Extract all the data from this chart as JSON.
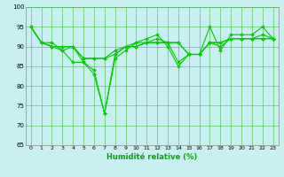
{
  "xlabel": "Humidité relative (%)",
  "bg_color": "#c8f0f0",
  "line_color": "#00cc00",
  "grid_color": "#44bb44",
  "ylim": [
    65,
    100
  ],
  "xlim": [
    -0.5,
    23.5
  ],
  "yticks": [
    65,
    70,
    75,
    80,
    85,
    90,
    95,
    100
  ],
  "xticks": [
    0,
    1,
    2,
    3,
    4,
    5,
    6,
    7,
    8,
    9,
    10,
    11,
    12,
    13,
    14,
    15,
    16,
    17,
    18,
    19,
    20,
    21,
    22,
    23
  ],
  "series1": [
    95,
    91,
    91,
    89,
    86,
    86,
    83,
    73,
    87,
    89,
    91,
    92,
    93,
    90,
    85,
    88,
    88,
    95,
    89,
    93,
    93,
    93,
    95,
    92
  ],
  "series2": [
    95,
    91,
    90,
    89,
    90,
    86,
    84,
    73,
    88,
    90,
    91,
    91,
    92,
    91,
    86,
    88,
    88,
    91,
    90,
    92,
    92,
    92,
    93,
    92
  ],
  "series3": [
    95,
    91,
    90,
    90,
    90,
    87,
    87,
    87,
    89,
    90,
    90,
    91,
    91,
    91,
    91,
    88,
    88,
    91,
    91,
    92,
    92,
    92,
    92,
    92
  ],
  "series4": [
    95,
    91,
    90,
    90,
    90,
    87,
    87,
    87,
    88,
    90,
    90,
    91,
    91,
    91,
    91,
    88,
    88,
    91,
    91,
    92,
    92,
    92,
    92,
    92
  ]
}
